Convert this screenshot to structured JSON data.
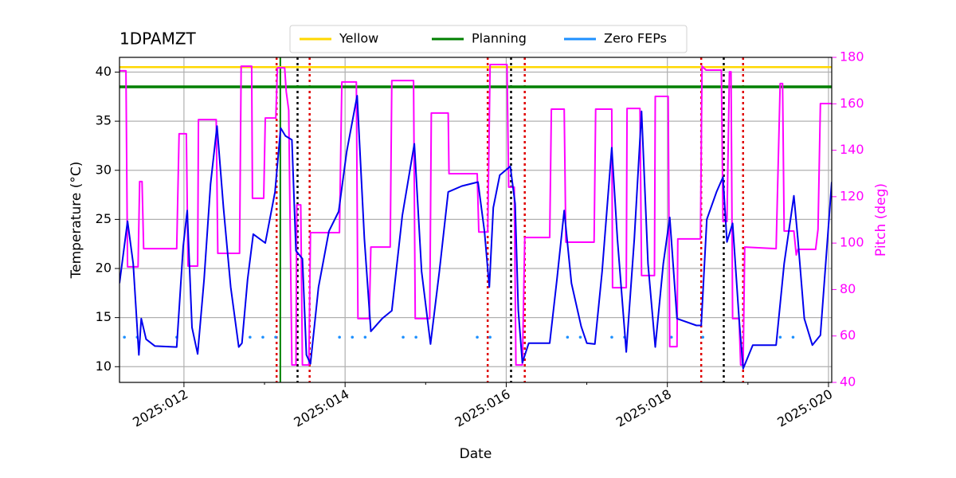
{
  "chart_data": {
    "type": "line",
    "title": "1DPAMZT",
    "xlabel": "Date",
    "ylabel": "Temperature (°C)",
    "y2label": "Pitch (deg)",
    "y2color": "#ff00ff",
    "grid": true,
    "legend": "upper center",
    "xlim": [
      11.2,
      20.04
    ],
    "xticks": [
      {
        "value": 12,
        "label": "2025:012"
      },
      {
        "value": 14,
        "label": "2025:014"
      },
      {
        "value": 16,
        "label": "2025:016"
      },
      {
        "value": 18,
        "label": "2025:018"
      },
      {
        "value": 20,
        "label": "2025:020"
      }
    ],
    "xminorticks": [
      13,
      15,
      17,
      19
    ],
    "ylim": [
      8.4,
      41.5
    ],
    "yticks": [
      10,
      15,
      20,
      25,
      30,
      35,
      40
    ],
    "y2lim": [
      40,
      180
    ],
    "y2ticks": [
      40,
      60,
      80,
      100,
      120,
      140,
      160,
      180
    ],
    "vlines": [
      {
        "x": 13.15,
        "color": "#e00000",
        "style": "dotted"
      },
      {
        "x": 13.196,
        "color": "#008000",
        "style": "solid"
      },
      {
        "x": 13.41,
        "color": "#000000",
        "style": "dotted"
      },
      {
        "x": 13.56,
        "color": "#e00000",
        "style": "dotted"
      },
      {
        "x": 15.77,
        "color": "#e00000",
        "style": "dotted"
      },
      {
        "x": 16.06,
        "color": "#000000",
        "style": "dotted"
      },
      {
        "x": 16.23,
        "color": "#e00000",
        "style": "dotted"
      },
      {
        "x": 18.42,
        "color": "#e00000",
        "style": "dotted"
      },
      {
        "x": 18.7,
        "color": "#000000",
        "style": "dotted"
      },
      {
        "x": 18.94,
        "color": "#e00000",
        "style": "dotted"
      }
    ],
    "series": [
      {
        "name": "Yellow",
        "color": "#ffd700",
        "width": 2.5,
        "style": "solid",
        "x": [
          11.2,
          20.04
        ],
        "values": [
          40.5,
          40.5
        ]
      },
      {
        "name": "Planning",
        "color": "#008000",
        "width": 3.5,
        "style": "solid",
        "x": [
          11.2,
          20.04
        ],
        "values": [
          38.5,
          38.5
        ]
      },
      {
        "name": "Zero FEPs",
        "color": "#1e90ff",
        "width": 3.5,
        "style": "dotted",
        "x": [
          11.26,
          11.5,
          null,
          11.91,
          12.03,
          null,
          12.82,
          13.16,
          null,
          13.93,
          14.4,
          null,
          14.72,
          14.9,
          null,
          15.64,
          15.82,
          null,
          16.76,
          17.03,
          null,
          17.31,
          17.6,
          null,
          18.05,
          18.2,
          null,
          18.44,
          18.47,
          null,
          19.4,
          19.7
        ],
        "values": [
          13,
          13,
          null,
          13,
          13,
          null,
          13,
          13,
          null,
          13,
          13,
          null,
          13,
          13,
          null,
          13,
          13,
          null,
          13,
          13,
          null,
          13,
          13,
          null,
          13,
          13,
          null,
          13,
          13,
          null,
          13,
          13
        ]
      },
      {
        "color": "#ff00ff",
        "width": 2,
        "style": "solid",
        "axis": "y2",
        "x": [
          11.2,
          11.28,
          11.3,
          11.43,
          11.45,
          11.48,
          11.5,
          11.91,
          11.94,
          12.03,
          12.05,
          12.17,
          12.18,
          12.4,
          12.42,
          12.69,
          12.71,
          12.84,
          12.85,
          12.99,
          13.01,
          13.14,
          13.16,
          13.25,
          13.27,
          13.3,
          13.34,
          13.39,
          13.4,
          13.45,
          13.47,
          13.55,
          13.57,
          13.93,
          13.96,
          14.14,
          14.16,
          14.3,
          14.32,
          14.56,
          14.58,
          14.85,
          14.87,
          15.05,
          15.07,
          15.28,
          15.29,
          15.64,
          15.66,
          15.77,
          15.8,
          16.01,
          16.03,
          16.1,
          16.12,
          16.2,
          16.23,
          16.54,
          16.56,
          16.72,
          16.74,
          17.09,
          17.11,
          17.31,
          17.32,
          17.49,
          17.5,
          17.66,
          17.68,
          17.84,
          17.85,
          18.01,
          18.03,
          18.12,
          18.13,
          18.41,
          18.43,
          18.48,
          18.67,
          18.69,
          18.74,
          18.77,
          18.79,
          18.81,
          18.89,
          18.91,
          18.94,
          18.96,
          19.35,
          19.4,
          19.43,
          19.45,
          19.57,
          19.6,
          19.62,
          19.84,
          19.87,
          19.9,
          20.04
        ],
        "values": [
          174.2,
          174.2,
          89.8,
          89.8,
          126.5,
          126.5,
          97.6,
          97.6,
          147.1,
          147.1,
          90.1,
          90.1,
          153.2,
          153.2,
          95.6,
          95.6,
          176.2,
          176.2,
          119.3,
          119.3,
          153.9,
          153.9,
          175.5,
          175.5,
          165.2,
          157.3,
          47.5,
          47.5,
          116.5,
          116.5,
          47.5,
          47.5,
          104.5,
          104.5,
          169.4,
          169.4,
          67.5,
          67.5,
          98.3,
          98.3,
          170.0,
          170.0,
          67.5,
          67.5,
          156.0,
          156.0,
          129.9,
          129.9,
          104.8,
          104.8,
          176.9,
          176.9,
          124.1,
          124.1,
          47.5,
          47.5,
          102.4,
          102.4,
          157.7,
          157.7,
          100.4,
          100.4,
          157.7,
          157.7,
          80.8,
          80.8,
          158.0,
          158.0,
          86.0,
          86.0,
          163.2,
          163.2,
          55.4,
          55.4,
          101.8,
          101.8,
          176.2,
          174.5,
          174.5,
          109.3,
          109.3,
          173.8,
          173.8,
          67.5,
          67.5,
          47.5,
          47.5,
          98.3,
          97.6,
          168.7,
          168.7,
          105.2,
          105.2,
          94.9,
          97.3,
          97.3,
          105.9,
          160.1,
          160.1
        ]
      },
      {
        "color": "#0000ee",
        "width": 2,
        "style": "solid",
        "x": [
          11.2,
          11.3,
          11.37,
          11.44,
          11.47,
          11.53,
          11.64,
          11.91,
          11.99,
          12.04,
          12.1,
          12.17,
          12.25,
          12.33,
          12.41,
          12.49,
          12.58,
          12.68,
          12.72,
          12.79,
          12.86,
          13.01,
          13.13,
          13.2,
          13.26,
          13.34,
          13.39,
          13.47,
          13.52,
          13.57,
          13.67,
          13.8,
          13.92,
          14.02,
          14.15,
          14.24,
          14.32,
          14.46,
          14.58,
          14.71,
          14.86,
          14.95,
          15.06,
          15.17,
          15.28,
          15.45,
          15.65,
          15.73,
          15.79,
          15.84,
          15.92,
          16.05,
          16.11,
          16.15,
          16.2,
          16.28,
          16.54,
          16.63,
          16.72,
          16.81,
          16.93,
          17.0,
          17.1,
          17.19,
          17.31,
          17.38,
          17.49,
          17.59,
          17.68,
          17.76,
          17.85,
          17.95,
          18.03,
          18.12,
          18.36,
          18.42,
          18.49,
          18.61,
          18.69,
          18.74,
          18.81,
          18.89,
          18.94,
          19.06,
          19.35,
          19.45,
          19.57,
          19.62,
          19.7,
          19.8,
          19.9,
          20.04
        ],
        "values": [
          18.5,
          24.8,
          20.5,
          11.2,
          14.9,
          12.8,
          12.1,
          12.0,
          22.2,
          25.9,
          14.0,
          11.3,
          18.9,
          28.6,
          34.5,
          26.2,
          18.1,
          12.0,
          12.4,
          18.9,
          23.5,
          22.6,
          27.8,
          34.3,
          33.5,
          33.1,
          21.8,
          21.0,
          11.2,
          10.3,
          18.1,
          23.8,
          25.8,
          31.9,
          37.6,
          23.0,
          13.6,
          14.9,
          15.7,
          25.4,
          32.7,
          19.7,
          12.3,
          19.7,
          27.8,
          28.4,
          28.8,
          23.8,
          18.1,
          26.2,
          29.5,
          30.4,
          26.6,
          15.7,
          10.4,
          12.4,
          12.4,
          18.9,
          25.9,
          18.5,
          14.1,
          12.4,
          12.3,
          19.7,
          32.3,
          23.0,
          11.5,
          23.0,
          36.0,
          20.5,
          12.0,
          20.5,
          25.2,
          14.9,
          14.2,
          14.2,
          25.0,
          27.8,
          29.3,
          22.7,
          24.6,
          14.9,
          9.8,
          12.2,
          12.2,
          20.5,
          27.4,
          23.0,
          14.9,
          12.2,
          13.2,
          28.8
        ]
      }
    ]
  }
}
